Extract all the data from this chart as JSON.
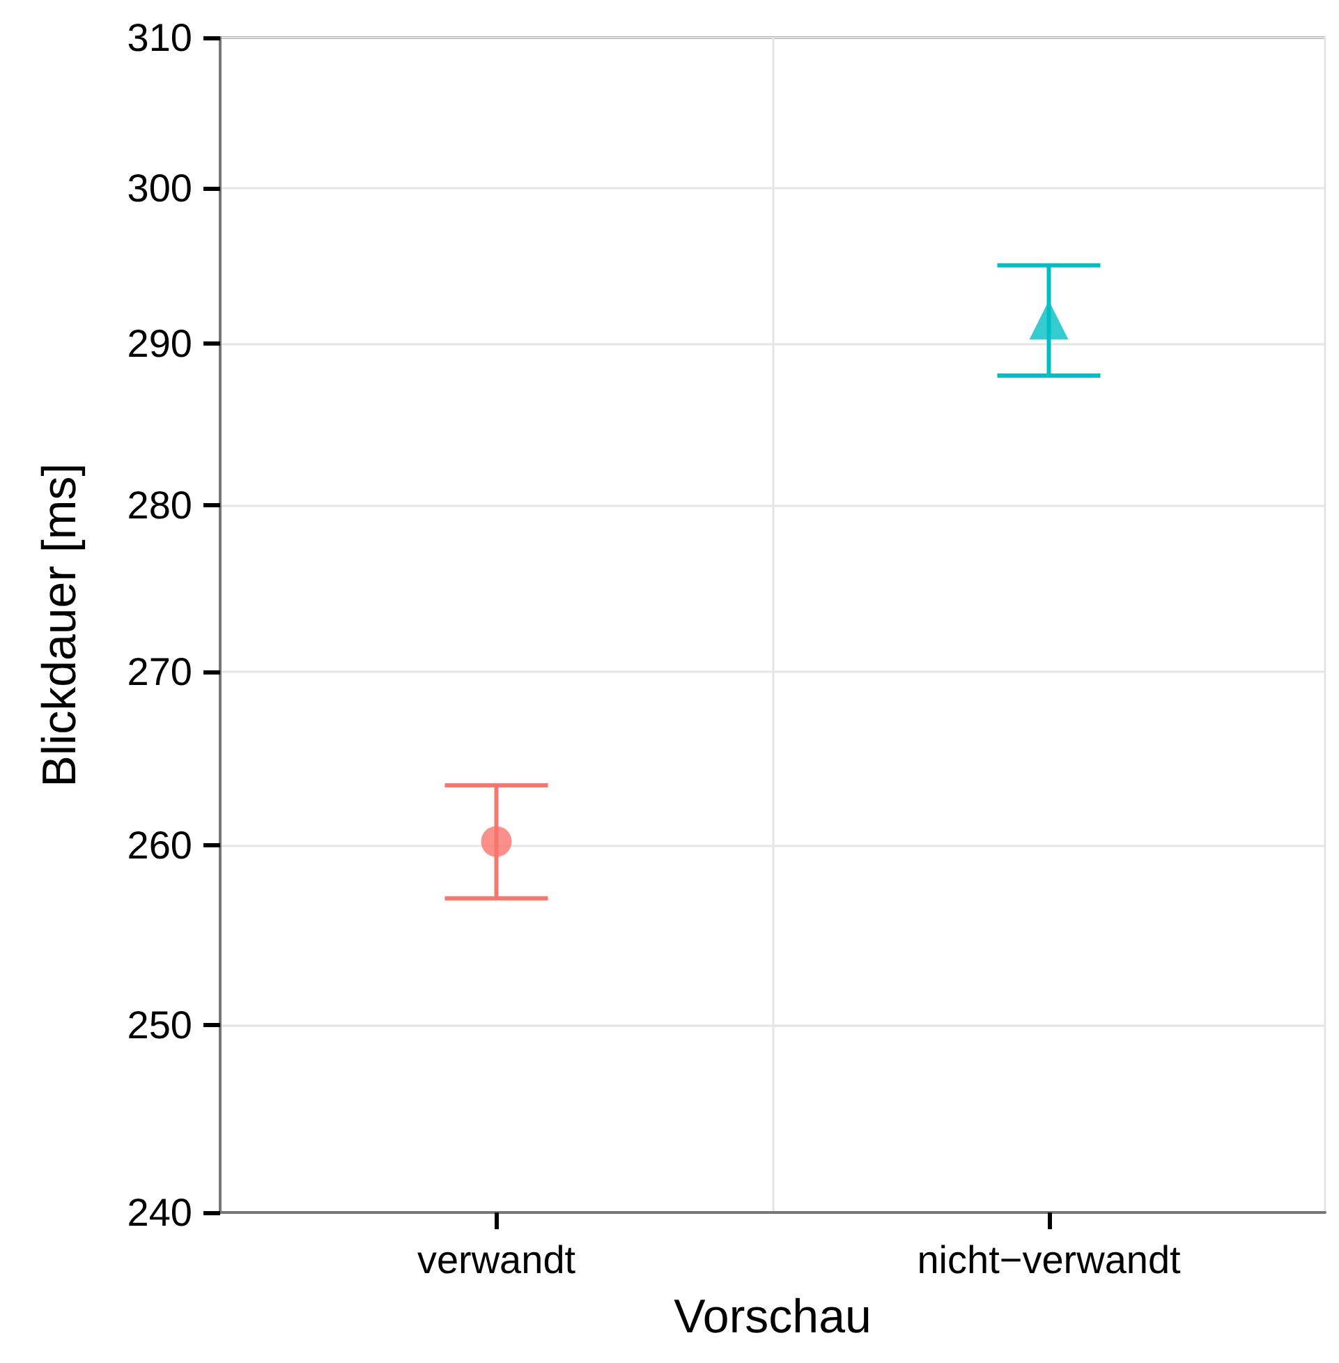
{
  "chart_data": {
    "type": "scatter",
    "xlabel": "Vorschau",
    "ylabel": "Blickdauer [ms]",
    "categories": [
      "verwandt",
      "nicht−verwandt"
    ],
    "series": [
      {
        "color": "#f8766d",
        "marker": "circle",
        "x": [
          "verwandt"
        ],
        "values": [
          260.2
        ],
        "errors": [
          [
            257.0,
            263.4
          ]
        ]
      },
      {
        "color": "#00bfc4",
        "marker": "triangle",
        "x": [
          "nicht−verwandt"
        ],
        "values": [
          291.5
        ],
        "errors": [
          [
            288.0,
            295.0
          ]
        ]
      }
    ],
    "log": true,
    "ylim": [
      240,
      310
    ],
    "yticks": [
      240,
      250,
      260,
      270,
      280,
      290,
      300,
      310
    ],
    "grid": true
  }
}
